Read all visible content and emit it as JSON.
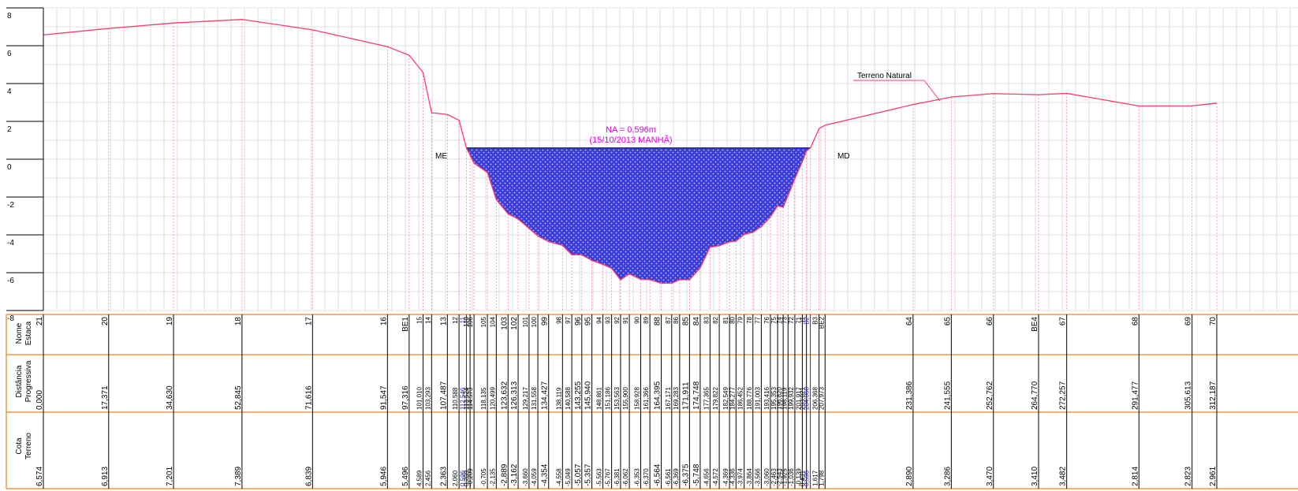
{
  "colors": {
    "grid": "#c8c8c8",
    "terrain": "#ff3b6b",
    "verticals": "#ff7fa0",
    "water_fill": "#3c3cdc",
    "water_line": "#2020c8",
    "annotation": "#e000e0",
    "table_rule": "#f08020",
    "text": "#000000"
  },
  "chart_data": {
    "type": "line",
    "ylim": [
      -8,
      8
    ],
    "xlim": [
      0,
      312.187
    ],
    "y_ticks": [
      "8",
      "6",
      "4",
      "2",
      "0",
      "-2",
      "-4",
      "-6",
      "-8"
    ],
    "water_level": 0.596,
    "labels": {
      "na": "NA = 0,596m",
      "na_date": "(15/10/2013 MANHÃ)",
      "left_bank": "ME",
      "right_bank": "MD",
      "terrain": "Terreno Natural"
    },
    "row_headers": {
      "name": [
        "Nome",
        "Estaca"
      ],
      "distance": [
        "Distância",
        "Progressiva"
      ],
      "elevation": [
        "Cota",
        "Terreno"
      ]
    },
    "stations": [
      {
        "name": "21",
        "d": "0,000",
        "z": "6,574"
      },
      {
        "name": "20",
        "d": "17,371",
        "z": "6,913"
      },
      {
        "name": "19",
        "d": "34,630",
        "z": "7,201"
      },
      {
        "name": "18",
        "d": "52,845",
        "z": "7,389"
      },
      {
        "name": "17",
        "d": "71,616",
        "z": "6,839"
      },
      {
        "name": "16",
        "d": "91,547",
        "z": "5,946"
      },
      {
        "name": "BE1",
        "d": "97,316",
        "z": "5,496"
      },
      {
        "name": "15",
        "d": "101,010",
        "z": "4,589"
      },
      {
        "name": "14",
        "d": "103,293",
        "z": "2,456"
      },
      {
        "name": "13",
        "d": "107,487",
        "z": "2,363"
      },
      {
        "name": "12",
        "d": "110,588",
        "z": "2,060"
      },
      {
        "name": "11",
        "d": "112,546",
        "z": "0,596"
      },
      {
        "name": "110",
        "d": "113,524",
        "z": "0,209"
      },
      {
        "name": "106",
        "d": "114,573",
        "z": "-0,209"
      },
      {
        "name": "105",
        "d": "118,135",
        "z": "-0,705"
      },
      {
        "name": "104",
        "d": "120,499",
        "z": "-2,135"
      },
      {
        "name": "103",
        "d": "123,632",
        "z": "-2,889"
      },
      {
        "name": "102",
        "d": "126,313",
        "z": "-3,162"
      },
      {
        "name": "101",
        "d": "129,217",
        "z": "-3,660"
      },
      {
        "name": "100",
        "d": "131,558",
        "z": "-4,059"
      },
      {
        "name": "99",
        "d": "134,427",
        "z": "-4,354"
      },
      {
        "name": "98",
        "d": "138,119",
        "z": "-4,558"
      },
      {
        "name": "97",
        "d": "140,588",
        "z": "-5,049"
      },
      {
        "name": "96",
        "d": "143,255",
        "z": "-5,057"
      },
      {
        "name": "95",
        "d": "145,940",
        "z": "-5,357"
      },
      {
        "name": "94",
        "d": "148,861",
        "z": "-5,563"
      },
      {
        "name": "93",
        "d": "151,186",
        "z": "-5,767"
      },
      {
        "name": "92",
        "d": "153,563",
        "z": "-6,381"
      },
      {
        "name": "91",
        "d": "155,900",
        "z": "-6,062"
      },
      {
        "name": "90",
        "d": "158,928",
        "z": "-6,353"
      },
      {
        "name": "89",
        "d": "161,366",
        "z": "-6,370"
      },
      {
        "name": "88",
        "d": "164,395",
        "z": "-6,564"
      },
      {
        "name": "87",
        "d": "167,171",
        "z": "-6,561"
      },
      {
        "name": "86",
        "d": "169,283",
        "z": "-6,369"
      },
      {
        "name": "85",
        "d": "171,911",
        "z": "-6,375"
      },
      {
        "name": "84",
        "d": "174,748",
        "z": "-5,748"
      },
      {
        "name": "83",
        "d": "177,365",
        "z": "-4,656"
      },
      {
        "name": "82",
        "d": "179,822",
        "z": "-4,572"
      },
      {
        "name": "81",
        "d": "182,549",
        "z": "-4,369"
      },
      {
        "name": "80",
        "d": "184,277",
        "z": "-4,336"
      },
      {
        "name": "79",
        "d": "186,452",
        "z": "-3,974"
      },
      {
        "name": "78",
        "d": "188,776",
        "z": "-3,864"
      },
      {
        "name": "77",
        "d": "191,003",
        "z": "-3,566"
      },
      {
        "name": "76",
        "d": "193,416",
        "z": "-3,060"
      },
      {
        "name": "75",
        "d": "195,353",
        "z": "-2,463"
      },
      {
        "name": "74",
        "d": "196,820",
        "z": "-2,543"
      },
      {
        "name": "73",
        "d": "198,119",
        "z": "-1,925"
      },
      {
        "name": "72",
        "d": "199,932",
        "z": "-1,036"
      },
      {
        "name": "71",
        "d": "201,917",
        "z": "-0,139"
      },
      {
        "name": "I1",
        "d": "203,021",
        "z": "0,431"
      },
      {
        "name": "B2",
        "d": "204,060",
        "z": "0,596"
      },
      {
        "name": "B3",
        "d": "206,368",
        "z": "1,617"
      },
      {
        "name": "BE2",
        "d": "207,973",
        "z": "1,798"
      },
      {
        "name": "64",
        "d": "231,386",
        "z": "2,890"
      },
      {
        "name": "65",
        "d": "241,555",
        "z": "3,286"
      },
      {
        "name": "66",
        "d": "252,762",
        "z": "3,470"
      },
      {
        "name": "BE4",
        "d": "264,770",
        "z": "3,410"
      },
      {
        "name": "67",
        "d": "272,257",
        "z": "3,482"
      },
      {
        "name": "68",
        "d": "291,477",
        "z": "2,814"
      },
      {
        "name": "69",
        "d": "305,613",
        "z": "2,823"
      },
      {
        "name": "70",
        "d": "312,187",
        "z": "2,961"
      }
    ]
  }
}
